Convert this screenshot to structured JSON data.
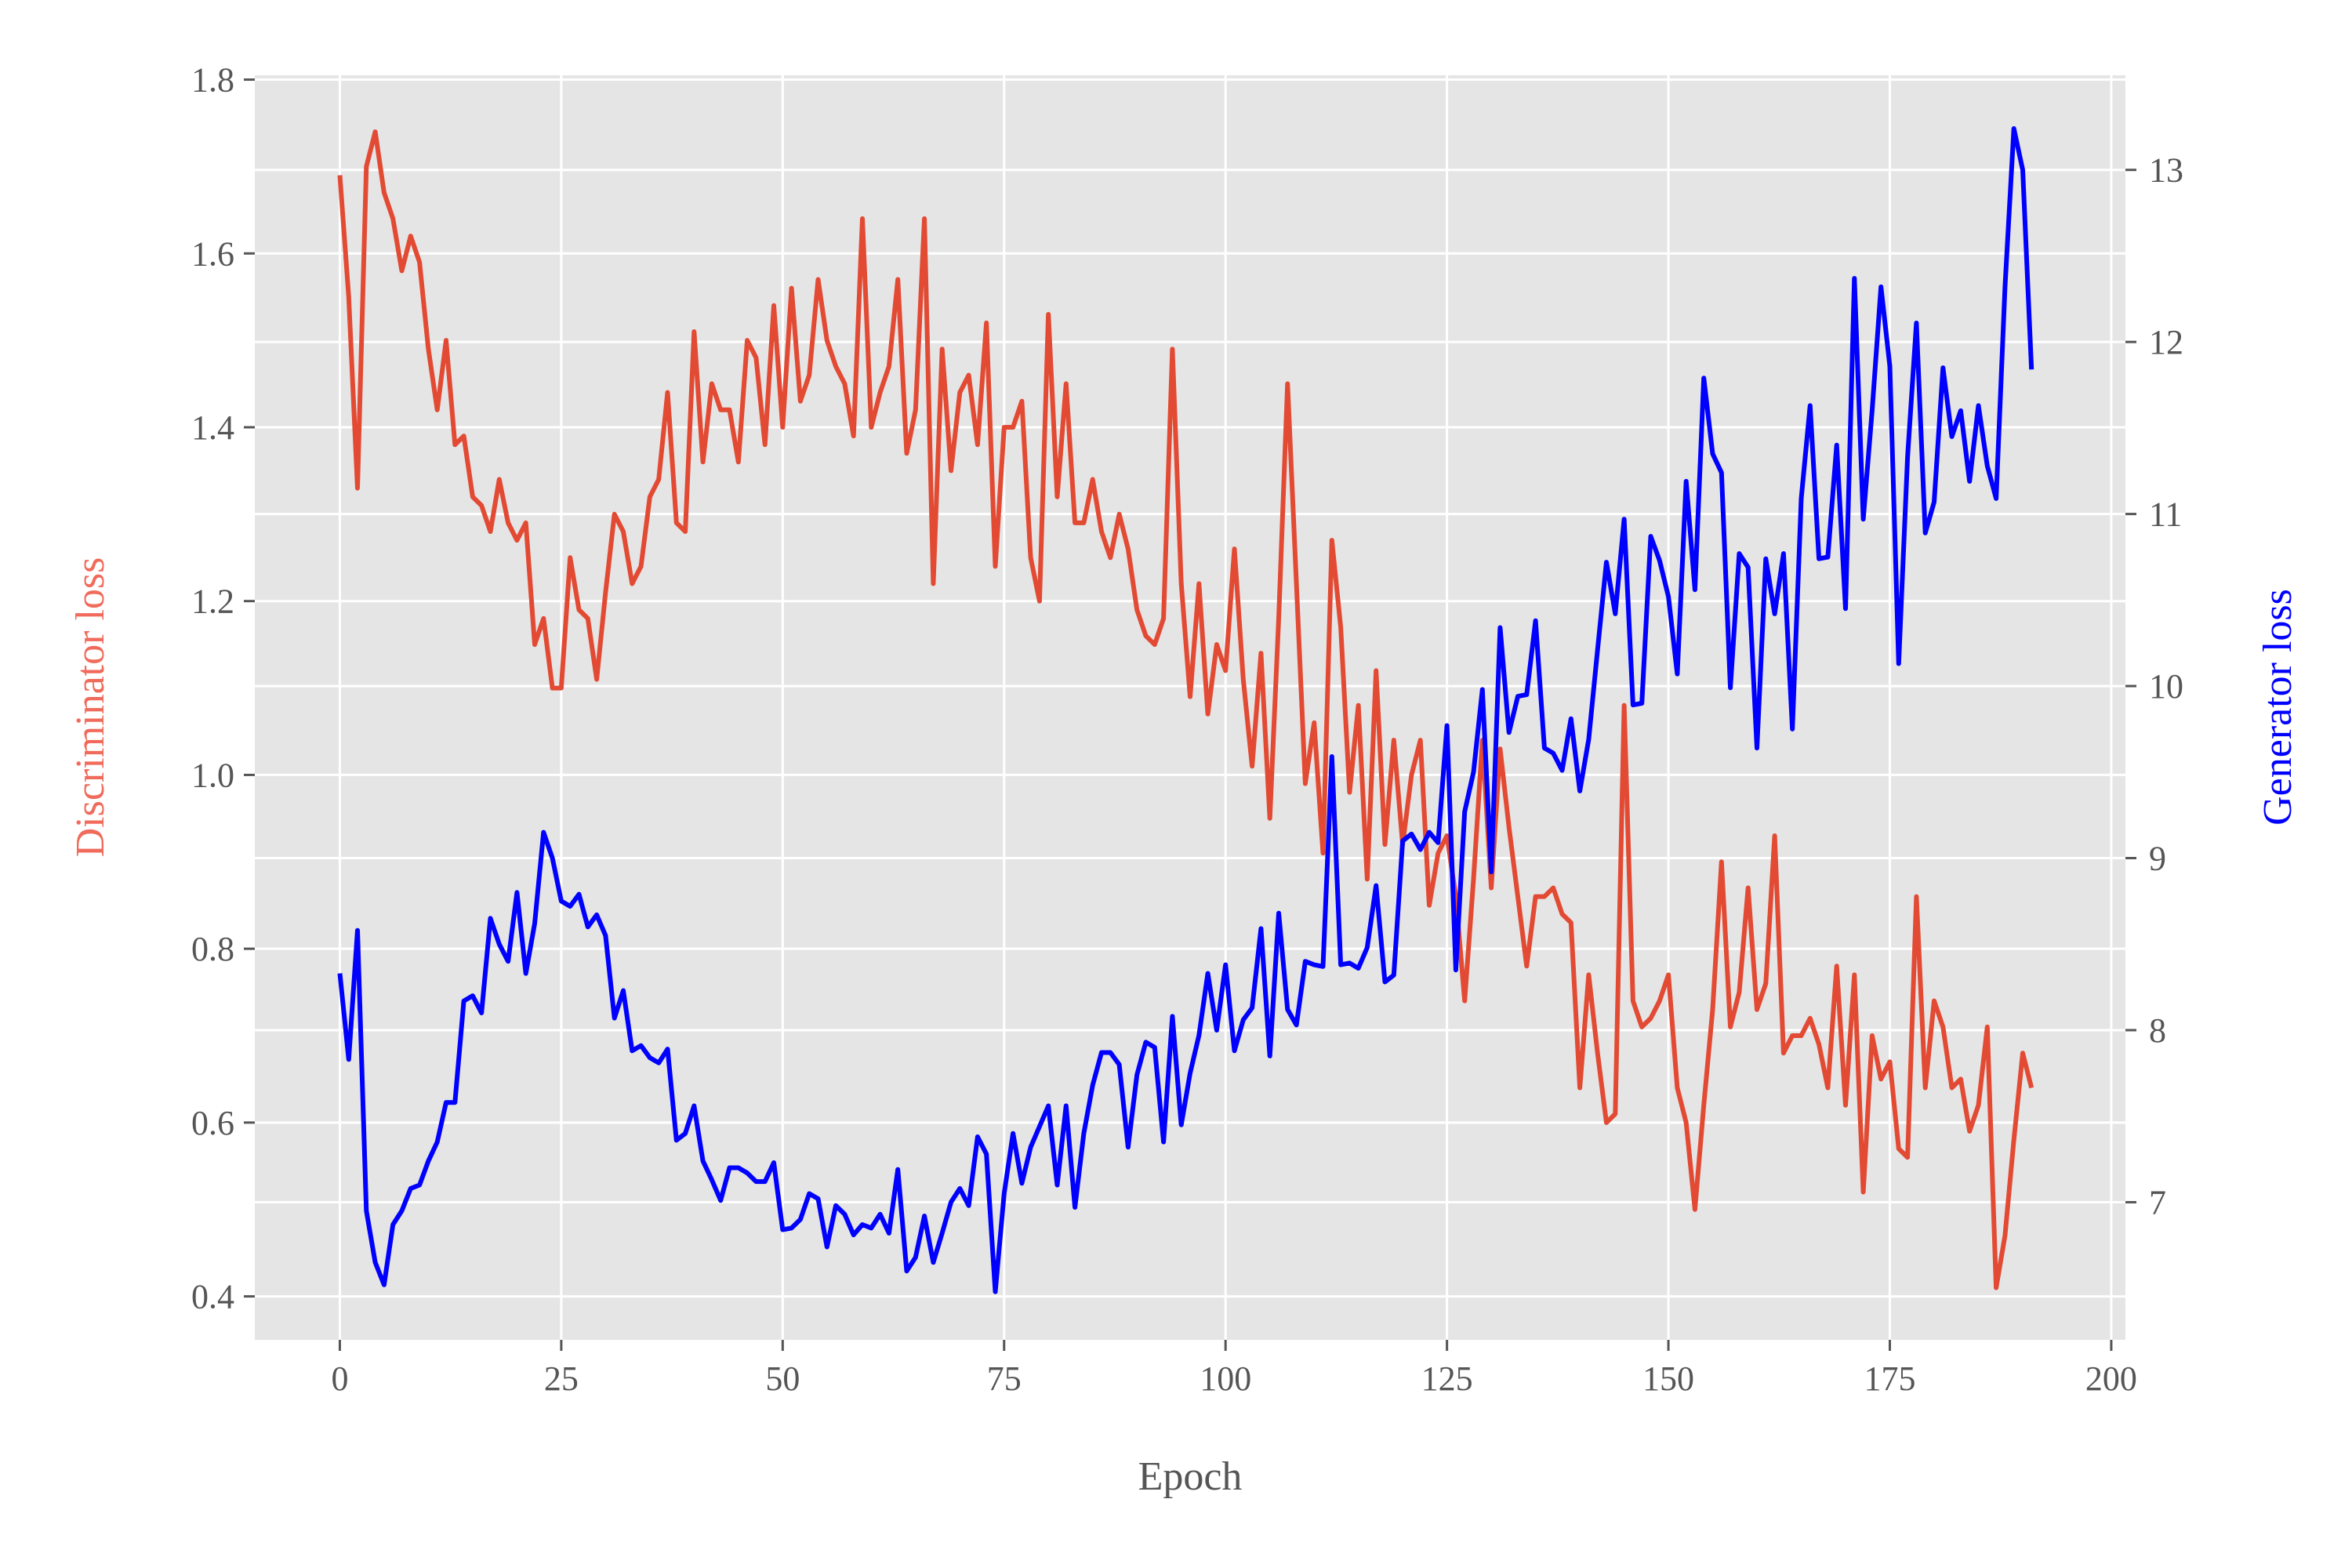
{
  "chart_data": {
    "type": "line",
    "xlabel": "Epoch",
    "ylabel": "Discriminator loss",
    "y2label": "Generator loss",
    "xlim": [
      -9.6,
      201.6
    ],
    "ylim": [
      0.35,
      1.805
    ],
    "y2lim": [
      6.2,
      13.55
    ],
    "xticks": [
      0,
      25,
      50,
      75,
      100,
      125,
      150,
      175,
      200
    ],
    "yticks": [
      0.4,
      0.6,
      0.8,
      1.0,
      1.2,
      1.4,
      1.6,
      1.8
    ],
    "y2ticks": [
      7,
      8,
      9,
      10,
      11,
      12,
      13
    ],
    "grid": true,
    "colors": {
      "discriminator": "#E24A33",
      "generator": "#0000FF",
      "ylabel": "#F06B5B",
      "y2label": "#0000FF",
      "plot_bg": "#E5E5E5",
      "grid": "#FFFFFF",
      "tick_text": "#555555"
    },
    "series": [
      {
        "axis": "left",
        "values": [
          1.69,
          1.55,
          1.33,
          1.7,
          1.74,
          1.67,
          1.64,
          1.58,
          1.62,
          1.59,
          1.49,
          1.42,
          1.5,
          1.38,
          1.39,
          1.32,
          1.31,
          1.28,
          1.34,
          1.29,
          1.27,
          1.29,
          1.15,
          1.18,
          1.1,
          1.1,
          1.25,
          1.19,
          1.18,
          1.11,
          1.21,
          1.3,
          1.28,
          1.22,
          1.24,
          1.32,
          1.34,
          1.44,
          1.29,
          1.28,
          1.51,
          1.36,
          1.45,
          1.42,
          1.42,
          1.36,
          1.5,
          1.48,
          1.38,
          1.54,
          1.4,
          1.56,
          1.43,
          1.46,
          1.57,
          1.5,
          1.47,
          1.45,
          1.39,
          1.64,
          1.4,
          1.44,
          1.47,
          1.57,
          1.37,
          1.42,
          1.64,
          1.22,
          1.49,
          1.35,
          1.44,
          1.46,
          1.38,
          1.52,
          1.24,
          1.4,
          1.4,
          1.43,
          1.25,
          1.2,
          1.53,
          1.32,
          1.45,
          1.29,
          1.29,
          1.34,
          1.28,
          1.25,
          1.3,
          1.26,
          1.19,
          1.16,
          1.15,
          1.18,
          1.49,
          1.22,
          1.09,
          1.22,
          1.07,
          1.15,
          1.12,
          1.26,
          1.11,
          1.01,
          1.14,
          0.95,
          1.18,
          1.45,
          1.22,
          0.99,
          1.06,
          0.91,
          1.27,
          1.17,
          0.98,
          1.08,
          0.88,
          1.12,
          0.92,
          1.04,
          0.92,
          1.0,
          1.04,
          0.85,
          0.91,
          0.93,
          0.86,
          0.74,
          0.88,
          1.04,
          0.87,
          1.03,
          0.94,
          0.86,
          0.78,
          0.86,
          0.86,
          0.87,
          0.84,
          0.83,
          0.64,
          0.77,
          0.68,
          0.6,
          0.61,
          1.08,
          0.74,
          0.71,
          0.72,
          0.74,
          0.77,
          0.64,
          0.6,
          0.5,
          0.62,
          0.73,
          0.9,
          0.71,
          0.75,
          0.87,
          0.73,
          0.76,
          0.93,
          0.68,
          0.7,
          0.7,
          0.72,
          0.69,
          0.64,
          0.78,
          0.62,
          0.77,
          0.52,
          0.7,
          0.65,
          0.67,
          0.57,
          0.56,
          0.86,
          0.64,
          0.74,
          0.71,
          0.64,
          0.65,
          0.59,
          0.62,
          0.71,
          0.41,
          0.47,
          0.58,
          0.68,
          0.64
        ]
      },
      {
        "axis": "right",
        "values": [
          8.33,
          7.83,
          8.58,
          6.95,
          6.65,
          6.52,
          6.87,
          6.95,
          7.08,
          7.1,
          7.24,
          7.35,
          7.58,
          7.58,
          8.17,
          8.2,
          8.1,
          8.65,
          8.5,
          8.4,
          8.8,
          8.33,
          8.62,
          9.15,
          9.0,
          8.75,
          8.72,
          8.79,
          8.6,
          8.67,
          8.55,
          8.07,
          8.23,
          7.88,
          7.91,
          7.84,
          7.81,
          7.89,
          7.36,
          7.4,
          7.56,
          7.24,
          7.13,
          7.01,
          7.2,
          7.2,
          7.17,
          7.12,
          7.12,
          7.23,
          6.84,
          6.85,
          6.9,
          7.05,
          7.02,
          6.74,
          6.98,
          6.93,
          6.81,
          6.87,
          6.85,
          6.93,
          6.82,
          7.19,
          6.6,
          6.68,
          6.92,
          6.65,
          6.82,
          7.0,
          7.08,
          6.98,
          7.38,
          7.28,
          6.48,
          7.05,
          7.4,
          7.11,
          7.32,
          7.44,
          7.56,
          7.1,
          7.56,
          6.97,
          7.4,
          7.68,
          7.87,
          7.87,
          7.8,
          7.32,
          7.74,
          7.93,
          7.9,
          7.35,
          8.08,
          7.45,
          7.75,
          7.97,
          8.33,
          8.0,
          8.38,
          7.88,
          8.06,
          8.13,
          8.59,
          7.85,
          8.68,
          8.12,
          8.03,
          8.4,
          8.38,
          8.37,
          9.59,
          8.38,
          8.39,
          8.36,
          8.48,
          8.84,
          8.28,
          8.32,
          9.1,
          9.14,
          9.05,
          9.15,
          9.09,
          9.77,
          8.35,
          9.27,
          9.5,
          9.98,
          8.92,
          10.34,
          9.73,
          9.94,
          9.95,
          10.38,
          9.64,
          9.61,
          9.51,
          9.81,
          9.39,
          9.69,
          10.21,
          10.72,
          10.42,
          10.97,
          9.89,
          9.9,
          10.87,
          10.73,
          10.52,
          10.07,
          11.19,
          10.56,
          11.79,
          11.35,
          11.24,
          9.99,
          10.77,
          10.69,
          9.64,
          10.74,
          10.42,
          10.77,
          9.75,
          11.09,
          11.63,
          10.74,
          10.75,
          11.4,
          10.45,
          12.37,
          10.97,
          11.6,
          12.32,
          11.86,
          10.13,
          11.33,
          12.11,
          10.89,
          11.07,
          11.85,
          11.45,
          11.6,
          11.19,
          11.63,
          11.28,
          11.09,
          12.32,
          13.24,
          13.0,
          11.84
        ]
      }
    ]
  }
}
